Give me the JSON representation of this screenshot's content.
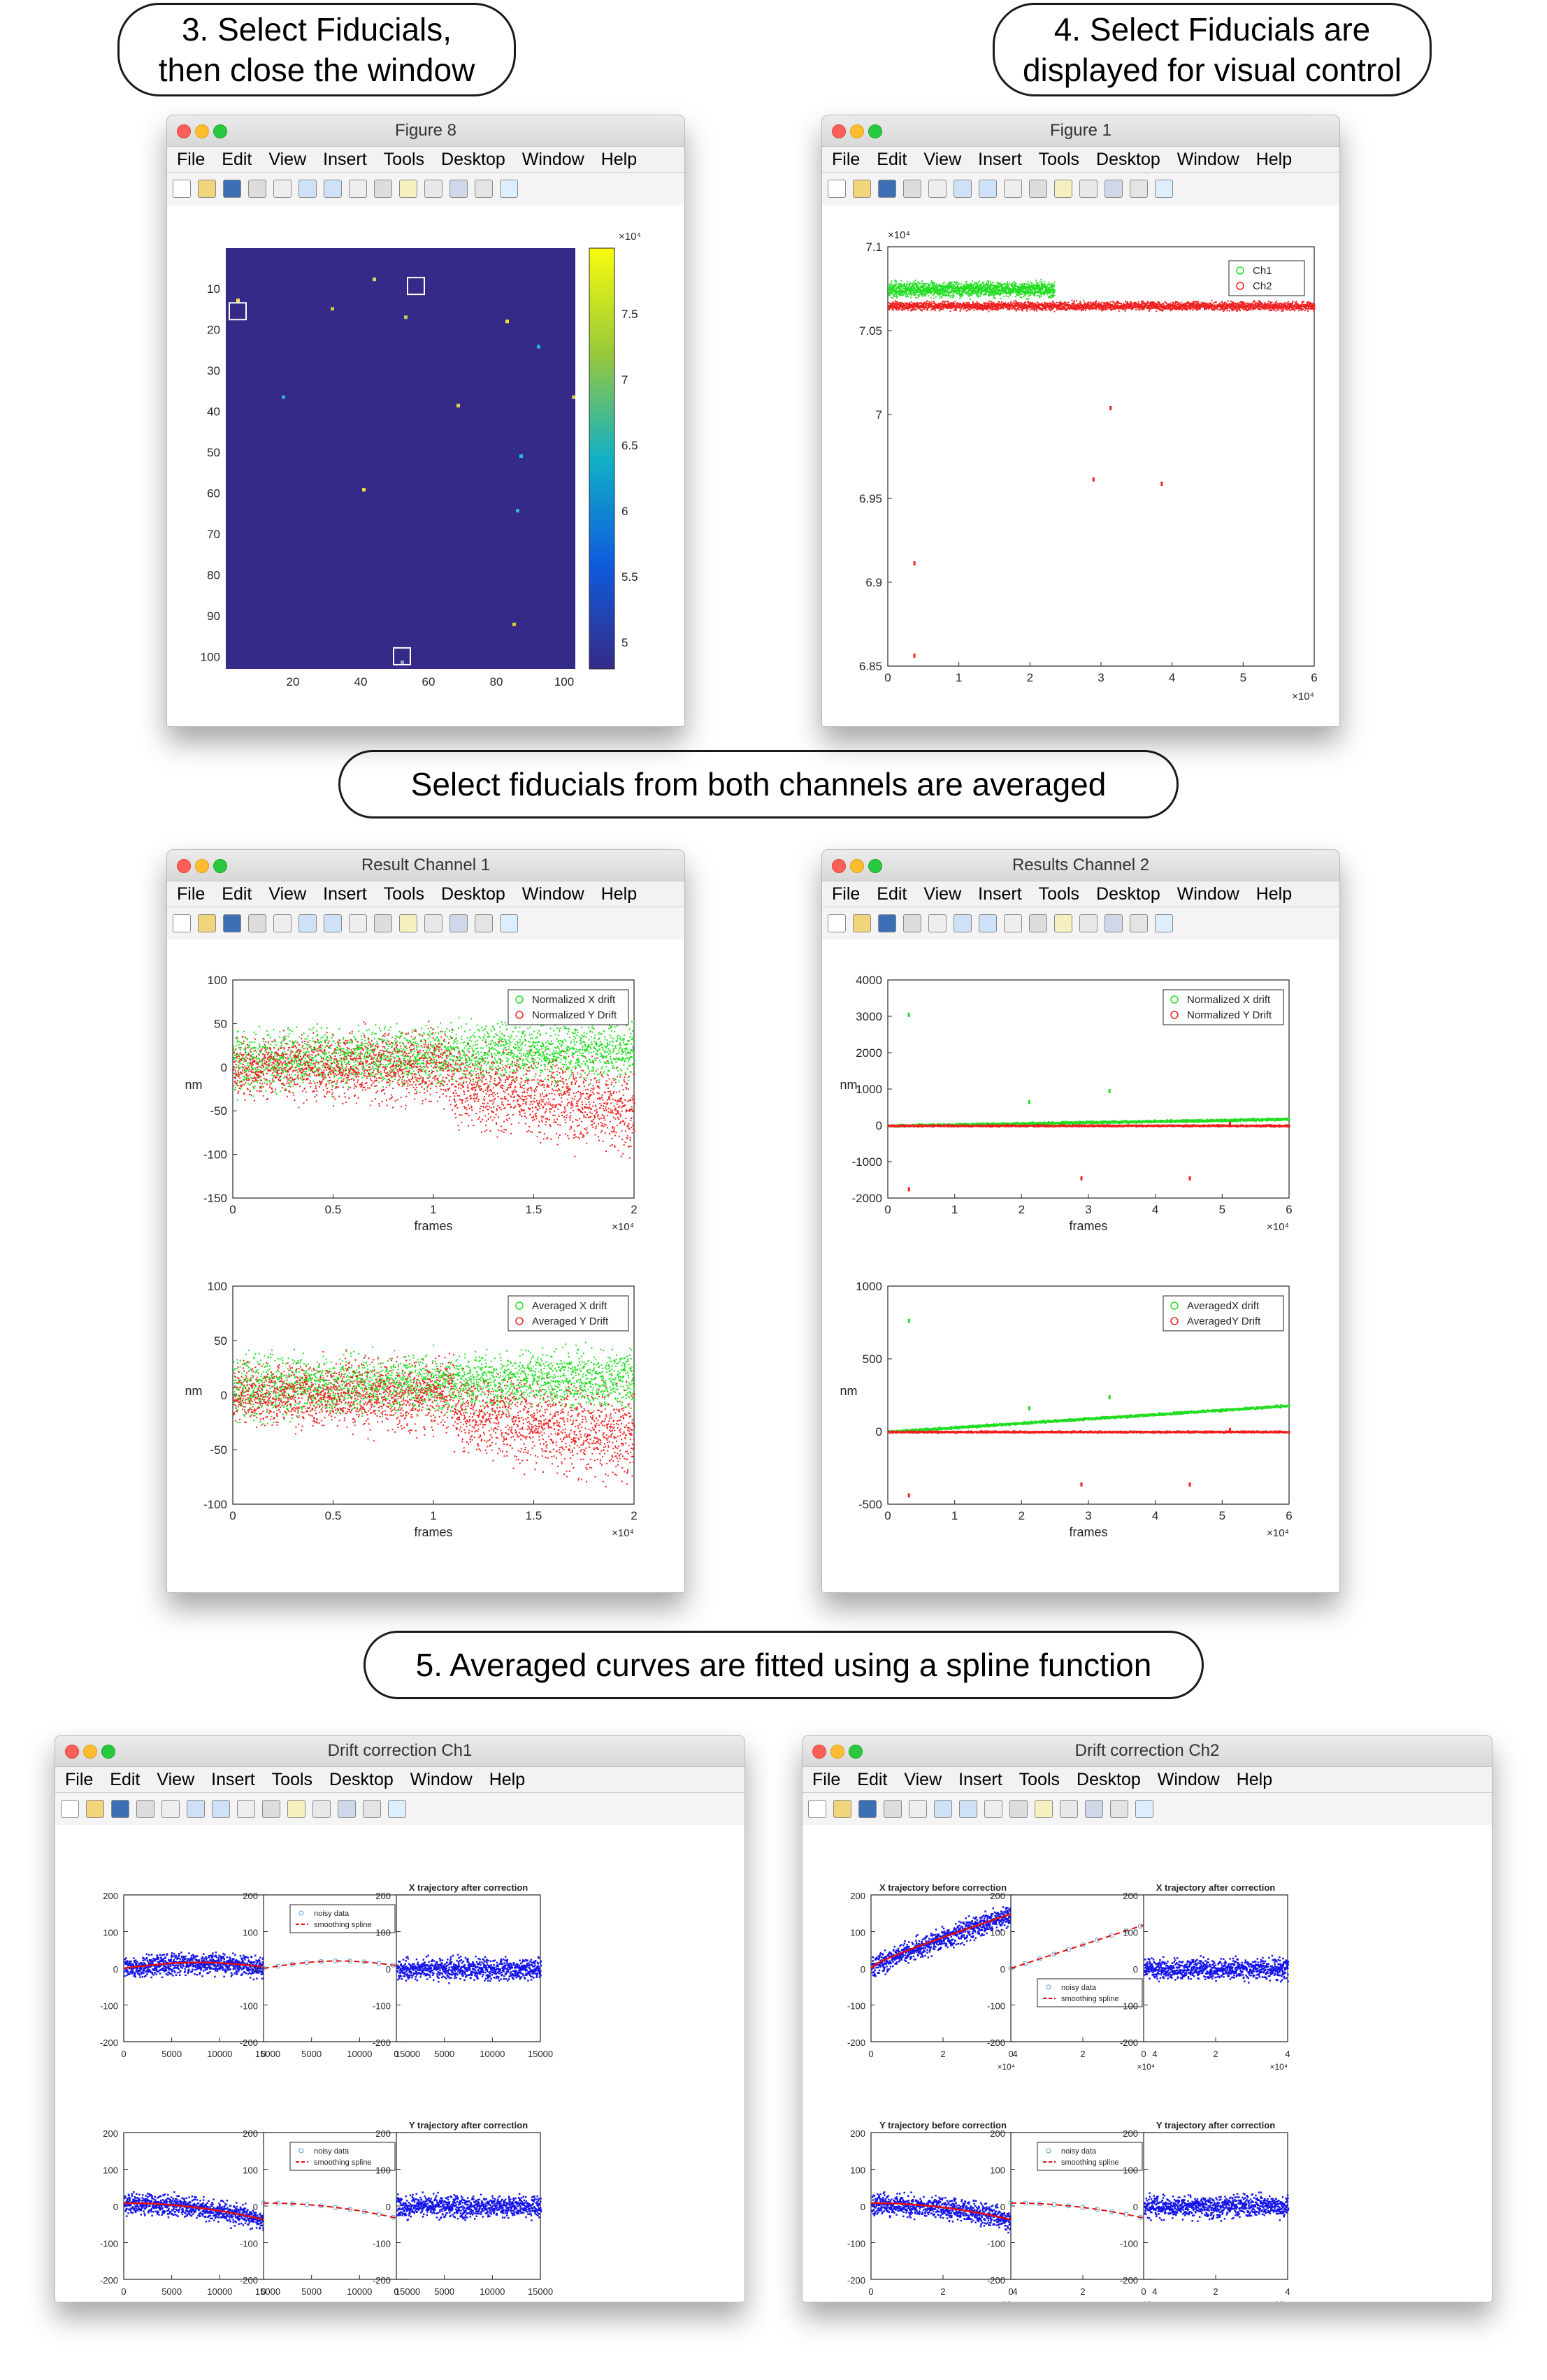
{
  "callouts": {
    "step3_line1": "3. Select Fiducials,",
    "step3_line2": "then close the window",
    "step4_line1": "4. Select Fiducials are",
    "step4_line2": "displayed for visual control",
    "middle": "Select fiducials from both channels are averaged",
    "step5": "5. Averaged curves are fitted using a spline function"
  },
  "menu": [
    "File",
    "Edit",
    "View",
    "Insert",
    "Tools",
    "Desktop",
    "Window",
    "Help"
  ],
  "windows": {
    "fig8": {
      "title": "Figure 8",
      "y_ticks": [
        "10",
        "20",
        "30",
        "40",
        "50",
        "60",
        "70",
        "80",
        "90",
        "100"
      ],
      "x_ticks": [
        "20",
        "40",
        "60",
        "80",
        "100"
      ],
      "colorbar_ticks": [
        "7.5",
        "7",
        "6.5",
        "6",
        "5.5",
        "5"
      ],
      "colorbar_exp": "×10⁴",
      "colors": {
        "background": "#352a87",
        "high": "#f9fb0e",
        "mid": "#0fb2d3"
      }
    },
    "fig1": {
      "title": "Figure 1",
      "y_ticks": [
        "7.1",
        "7.05",
        "7",
        "6.95",
        "6.9",
        "6.85"
      ],
      "x_ticks": [
        "0",
        "1",
        "2",
        "3",
        "4",
        "5",
        "6"
      ],
      "y_exp": "×10⁴",
      "x_exp": "×10⁴",
      "legend": [
        "Ch1",
        "Ch2"
      ]
    },
    "res1": {
      "title": "Result Channel 1",
      "top": {
        "y_ticks": [
          "100",
          "50",
          "0",
          "-50",
          "-100",
          "-150"
        ],
        "x_ticks": [
          "0",
          "0.5",
          "1",
          "1.5",
          "2"
        ],
        "ylabel": "nm",
        "xlabel": "frames",
        "x_exp": "×10⁴",
        "legend": [
          "Normalized X drift",
          "Normalized Y Drift"
        ]
      },
      "bottom": {
        "y_ticks": [
          "100",
          "50",
          "0",
          "-50",
          "-100"
        ],
        "x_ticks": [
          "0",
          "0.5",
          "1",
          "1.5",
          "2"
        ],
        "ylabel": "nm",
        "xlabel": "frames",
        "x_exp": "×10⁴",
        "legend": [
          "Averaged X drift",
          "Averaged Y Drift"
        ]
      }
    },
    "res2": {
      "title": "Results Channel 2",
      "top": {
        "y_ticks": [
          "4000",
          "3000",
          "2000",
          "1000",
          "0",
          "-1000",
          "-2000"
        ],
        "x_ticks": [
          "0",
          "1",
          "2",
          "3",
          "4",
          "5",
          "6"
        ],
        "ylabel": "nm",
        "xlabel": "frames",
        "x_exp": "×10⁴",
        "legend": [
          "Normalized X drift",
          "Normalized Y Drift"
        ]
      },
      "bottom": {
        "y_ticks": [
          "1000",
          "500",
          "0",
          "-500"
        ],
        "x_ticks": [
          "0",
          "1",
          "2",
          "3",
          "4",
          "5",
          "6"
        ],
        "ylabel": "nm",
        "xlabel": "frames",
        "x_exp": "×10⁴",
        "legend": [
          "AveragedX drift",
          "AveragedY Drift"
        ]
      }
    },
    "dc1": {
      "title": "Drift correction Ch1",
      "y_ticks": [
        "200",
        "100",
        "0",
        "-100",
        "-200"
      ],
      "x_ticks": [
        "0",
        "5000",
        "10000",
        "15000"
      ],
      "legend": [
        "noisy data",
        "smoothing spline"
      ],
      "x_after": "X trajectory after correction",
      "y_after": "Y trajectory after correction"
    },
    "dc2": {
      "title": "Drift correction Ch2",
      "y_ticks": [
        "200",
        "100",
        "0",
        "-100",
        "-200"
      ],
      "x_ticks": [
        "0",
        "2",
        "4"
      ],
      "x_exp": "×10⁴",
      "legend": [
        "noisy data",
        "smoothing spline"
      ],
      "x_before": "X trajectory before correction",
      "y_before": "Y trajectory before correction",
      "x_after": "X trajectory after correction",
      "y_after": "Y trajectory after correction"
    }
  },
  "colors": {
    "ch1": "#22dd22",
    "ch2": "#ee2020",
    "blue": "#1515e8",
    "spline": "#e01010"
  }
}
